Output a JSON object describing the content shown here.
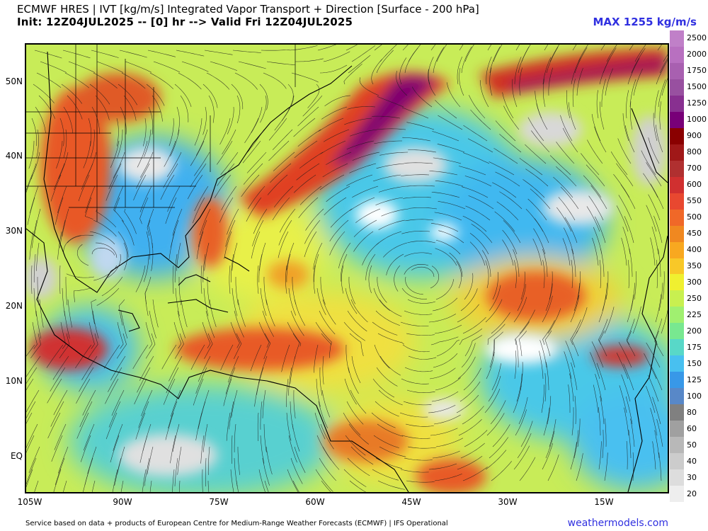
{
  "header": {
    "title_line1": "ECMWF HRES | IVT [kg/m/s] Integrated Vapor Transport + Direction [Surface - 200 hPa]",
    "title_line2": "Init: 12Z04JUL2025 -- [0] hr --> Valid Fri 12Z04JUL2025",
    "max_label": "MAX 1255 kg/m/s"
  },
  "map": {
    "lat_labels": [
      "50N",
      "40N",
      "30N",
      "20N",
      "10N",
      "EQ"
    ],
    "lon_labels": [
      "105W",
      "90W",
      "75W",
      "60W",
      "45W",
      "30W",
      "15W"
    ]
  },
  "colorbar": {
    "labels": [
      "2500",
      "2000",
      "1750",
      "1500",
      "1250",
      "1000",
      "900",
      "800",
      "700",
      "600",
      "550",
      "500",
      "450",
      "400",
      "350",
      "300",
      "250",
      "225",
      "200",
      "175",
      "150",
      "125",
      "100",
      "80",
      "60",
      "50",
      "40",
      "30",
      "20"
    ],
    "colors": [
      "#c080c8",
      "#b870c0",
      "#a860b0",
      "#9850a0",
      "#883090",
      "#780078",
      "#8a0000",
      "#a01818",
      "#b03030",
      "#d03030",
      "#e84830",
      "#f06828",
      "#f08820",
      "#f8a820",
      "#f8c828",
      "#f0f030",
      "#c8f050",
      "#a0f070",
      "#78e890",
      "#58d8c8",
      "#48c0f0",
      "#3898e8",
      "#5888c8",
      "#808080",
      "#a0a0a0",
      "#b8b8b8",
      "#cccccc",
      "#dddddd",
      "#eeeeee"
    ]
  },
  "footer": {
    "note": "Service based on data + products of European Centre for Medium-Range Weather Forecasts (ECMWF) | IFS Operational",
    "site": "weathermodels.com"
  }
}
